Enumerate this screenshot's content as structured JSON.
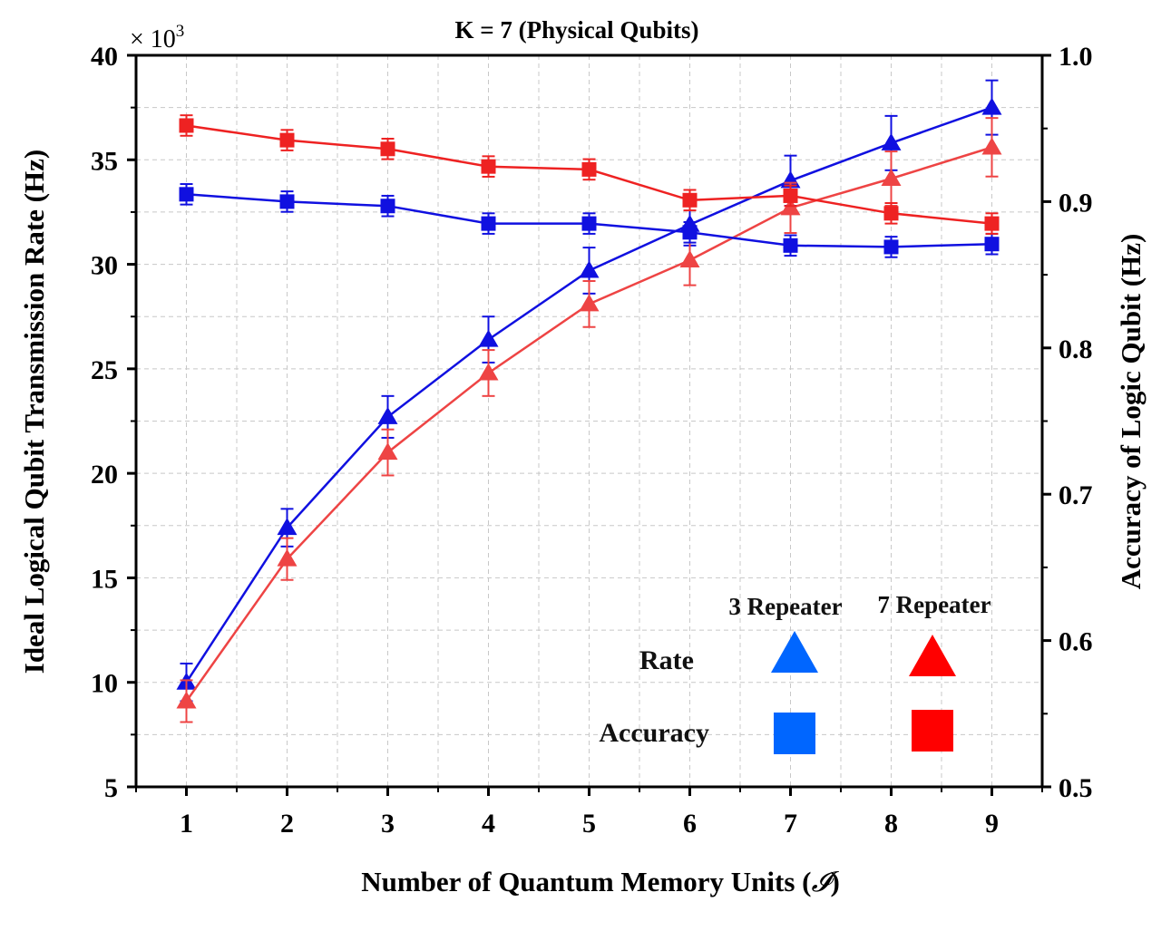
{
  "chart_data": {
    "type": "line",
    "title": "K = 7 (Physical Qubits)",
    "xlabel": "Number of Quantum Memory Units (",
    "xlabel_symbol": "𝓘",
    "xlabel_close": ")",
    "ylabel_left": "Ideal Logical Qubit Transmission Rate (Hz)",
    "ylabel_right": "Accuracy of Logic Qubit (Hz)",
    "left_multiplier_label": "× 10",
    "left_multiplier_exp": "3",
    "x": [
      1,
      2,
      3,
      4,
      5,
      6,
      7,
      8,
      9
    ],
    "x_tick_labels": [
      "1",
      "2",
      "3",
      "4",
      "5",
      "6",
      "7",
      "8",
      "9"
    ],
    "xlim": [
      0.5,
      9.5
    ],
    "ylim_left": [
      5,
      40
    ],
    "left_ticks": [
      5,
      10,
      15,
      20,
      25,
      30,
      35,
      40
    ],
    "left_tick_labels": [
      "5",
      "10",
      "15",
      "20",
      "25",
      "30",
      "35",
      "40"
    ],
    "ylim_right": [
      0.5,
      1.0
    ],
    "right_ticks": [
      0.5,
      0.6,
      0.7,
      0.8,
      0.9,
      1.0
    ],
    "right_tick_labels": [
      "0.5",
      "0.6",
      "0.7",
      "0.8",
      "0.9",
      "1.0"
    ],
    "grid": true,
    "legend": {
      "position": "bottom-right",
      "columns": [
        "3 Repeater",
        "7 Repeater"
      ],
      "rows": [
        "Rate",
        "Accuracy"
      ],
      "colors": [
        "#0066ff",
        "#ff0000"
      ]
    },
    "series": [
      {
        "name": "Rate - 3 Repeater",
        "axis": "left",
        "marker": "triangle",
        "color": "#1010e0",
        "values": [
          10.0,
          17.4,
          22.7,
          26.4,
          29.7,
          31.9,
          34.0,
          35.8,
          37.5
        ],
        "errors": [
          0.9,
          0.9,
          1.0,
          1.1,
          1.1,
          1.0,
          1.2,
          1.3,
          1.3
        ]
      },
      {
        "name": "Rate - 7 Repeater",
        "axis": "left",
        "marker": "triangle",
        "color": "#ee4444",
        "values": [
          9.1,
          15.9,
          21.0,
          24.8,
          28.1,
          30.2,
          32.7,
          34.1,
          35.6
        ],
        "errors": [
          1.0,
          1.0,
          1.1,
          1.1,
          1.1,
          1.2,
          1.2,
          1.3,
          1.4
        ]
      },
      {
        "name": "Accuracy - 3 Repeater",
        "axis": "right",
        "marker": "square",
        "color": "#1010e0",
        "values": [
          0.905,
          0.9,
          0.897,
          0.885,
          0.885,
          0.879,
          0.87,
          0.869,
          0.871
        ],
        "errors": [
          0.007,
          0.007,
          0.007,
          0.007,
          0.007,
          0.007,
          0.007,
          0.007,
          0.007
        ]
      },
      {
        "name": "Accuracy - 7 Repeater",
        "axis": "right",
        "marker": "square",
        "color": "#ee2222",
        "values": [
          0.952,
          0.942,
          0.936,
          0.924,
          0.922,
          0.901,
          0.904,
          0.892,
          0.885
        ],
        "errors": [
          0.007,
          0.007,
          0.007,
          0.007,
          0.007,
          0.007,
          0.007,
          0.007,
          0.007
        ]
      }
    ]
  }
}
